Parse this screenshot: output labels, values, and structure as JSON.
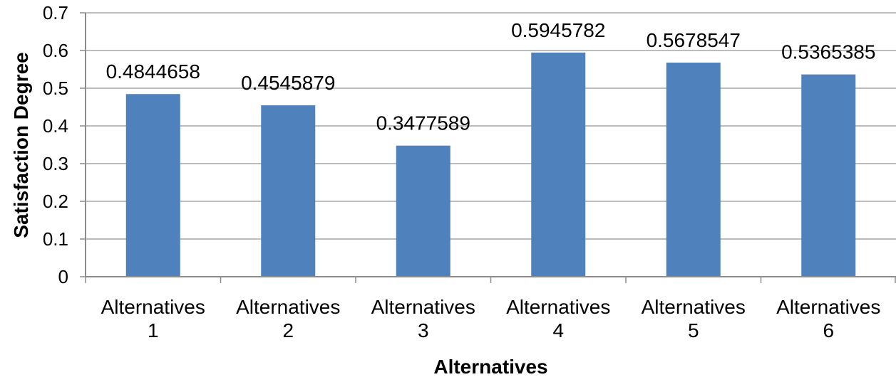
{
  "chart_data": {
    "type": "bar",
    "title": "",
    "xlabel": "Alternatives",
    "ylabel": "Satisfaction Degree",
    "categories": [
      [
        "Alternatives",
        "1"
      ],
      [
        "Alternatives",
        "2"
      ],
      [
        "Alternatives",
        "3"
      ],
      [
        "Alternatives",
        "4"
      ],
      [
        "Alternatives",
        "5"
      ],
      [
        "Alternatives",
        "6"
      ]
    ],
    "values": [
      0.4844658,
      0.4545879,
      0.3477589,
      0.5945782,
      0.5678547,
      0.5365385
    ],
    "data_labels": [
      "0.4844658",
      "0.4545879",
      "0.3477589",
      "0.5945782",
      "0.5678547",
      "0.5365385"
    ],
    "ylim": [
      0,
      0.7
    ],
    "yticks": [
      "0",
      "0.1",
      "0.2",
      "0.3",
      "0.4",
      "0.5",
      "0.6",
      "0.7"
    ],
    "grid": true,
    "legend": "none",
    "colors": {
      "bar": "#4f81bd",
      "grid": "#a6a6a6",
      "axis": "#8c8c8c"
    }
  }
}
